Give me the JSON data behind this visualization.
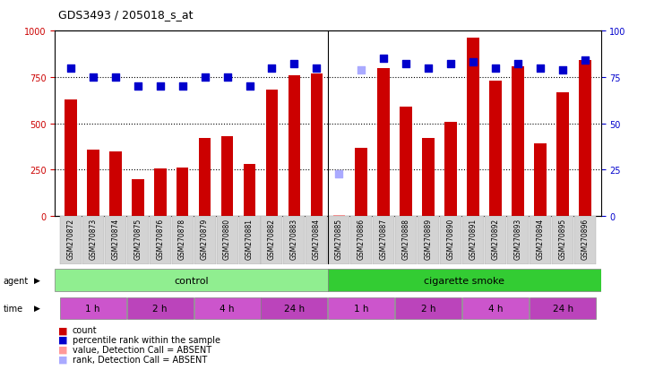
{
  "title": "GDS3493 / 205018_s_at",
  "samples": [
    "GSM270872",
    "GSM270873",
    "GSM270874",
    "GSM270875",
    "GSM270876",
    "GSM270878",
    "GSM270879",
    "GSM270880",
    "GSM270881",
    "GSM270882",
    "GSM270883",
    "GSM270884",
    "GSM270885",
    "GSM270886",
    "GSM270887",
    "GSM270888",
    "GSM270889",
    "GSM270890",
    "GSM270891",
    "GSM270892",
    "GSM270893",
    "GSM270894",
    "GSM270895",
    "GSM270896"
  ],
  "counts": [
    630,
    360,
    350,
    200,
    255,
    260,
    420,
    430,
    280,
    680,
    760,
    770,
    5,
    370,
    800,
    590,
    420,
    510,
    960,
    730,
    810,
    390,
    670,
    840
  ],
  "percentile_ranks": [
    80,
    75,
    75,
    70,
    70,
    70,
    75,
    75,
    70,
    80,
    82,
    80,
    23,
    79,
    85,
    82,
    80,
    82,
    83,
    80,
    82,
    80,
    79,
    84
  ],
  "absent_count_indices": [
    12
  ],
  "absent_rank_indices": [
    12,
    13
  ],
  "bar_color": "#cc0000",
  "bar_color_absent": "#ff9999",
  "dot_color": "#0000cc",
  "dot_color_absent": "#aaaaff",
  "tick_area_color": "#d3d3d3",
  "agent_control_color": "#90ee90",
  "agent_smoke_color": "#33cc33",
  "time_color_1": "#cc55cc",
  "time_color_2": "#bb44bb",
  "ylim_left": [
    0,
    1000
  ],
  "ylim_right": [
    0,
    100
  ],
  "yticks_left": [
    0,
    250,
    500,
    750,
    1000
  ],
  "yticks_right": [
    0,
    25,
    50,
    75,
    100
  ],
  "time_groups": [
    {
      "label": "1 h",
      "start": 0,
      "end": 3
    },
    {
      "label": "2 h",
      "start": 3,
      "end": 6
    },
    {
      "label": "4 h",
      "start": 6,
      "end": 9
    },
    {
      "label": "24 h",
      "start": 9,
      "end": 12
    },
    {
      "label": "1 h",
      "start": 12,
      "end": 15
    },
    {
      "label": "2 h",
      "start": 15,
      "end": 18
    },
    {
      "label": "4 h",
      "start": 18,
      "end": 21
    },
    {
      "label": "24 h",
      "start": 21,
      "end": 24
    }
  ],
  "dot_size": 30,
  "bar_width": 0.55
}
